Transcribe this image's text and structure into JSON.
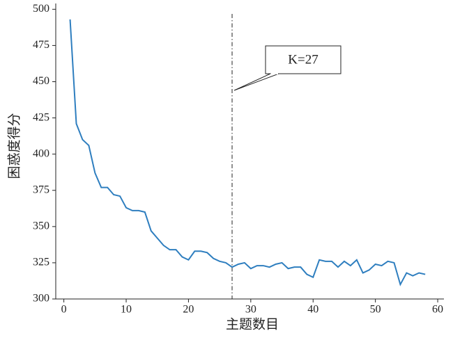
{
  "chart_data": {
    "type": "line",
    "xlabel": "主题数目",
    "ylabel": "困惑度得分",
    "x": [
      1,
      2,
      3,
      4,
      5,
      6,
      7,
      8,
      9,
      10,
      11,
      12,
      13,
      14,
      15,
      16,
      17,
      18,
      19,
      20,
      21,
      22,
      23,
      24,
      25,
      26,
      27,
      28,
      29,
      30,
      31,
      32,
      33,
      34,
      35,
      36,
      37,
      38,
      39,
      40,
      41,
      42,
      43,
      44,
      45,
      46,
      47,
      48,
      49,
      50,
      51,
      52,
      53,
      54,
      55,
      56,
      57,
      58
    ],
    "series": [
      {
        "color": "#2e7ebf",
        "values": [
          493,
          421,
          410,
          406,
          387,
          377,
          377,
          372,
          371,
          363,
          361,
          361,
          360,
          347,
          342,
          337,
          334,
          334,
          329,
          327,
          333,
          333,
          332,
          328,
          326,
          325,
          322,
          324,
          325,
          321,
          323,
          323,
          322,
          324,
          325,
          321,
          322,
          322,
          317,
          315,
          327,
          326,
          326,
          322,
          326,
          323,
          327,
          318,
          320,
          324,
          323,
          326,
          325,
          310,
          318,
          316,
          318,
          317
        ]
      }
    ],
    "xlim": [
      -1.3,
      61
    ],
    "ylim": [
      300,
      504
    ],
    "xticks": [
      0,
      10,
      20,
      30,
      40,
      50,
      60
    ],
    "yticks": [
      300,
      325,
      350,
      375,
      400,
      425,
      450,
      475,
      500
    ],
    "vline": 27,
    "annotation": "K=27"
  }
}
